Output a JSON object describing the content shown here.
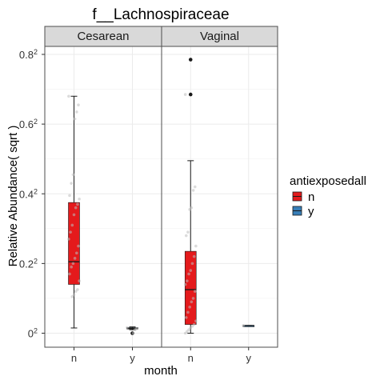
{
  "chart_data": {
    "type": "box",
    "title": "f__Lachnospiraceae",
    "xlabel": "month",
    "ylabel": "Relative Abundance( sqrt )",
    "ylim": [
      0,
      0.87
    ],
    "y_ticks": [
      0,
      0.2,
      0.4,
      0.6,
      0.8
    ],
    "y_tick_labels": [
      "0",
      "0.2",
      "0.4",
      "0.6",
      "0.8"
    ],
    "y_tick_superscript": "2",
    "categories": [
      "n",
      "y"
    ],
    "facets": [
      "Cesarean",
      "Vaginal"
    ],
    "legend": {
      "title": "antiexposedall",
      "position": "right",
      "entries": [
        {
          "label": "n",
          "color": "#e41a1c"
        },
        {
          "label": "y",
          "color": "#377eb8"
        }
      ]
    },
    "grid": true,
    "boxes": [
      {
        "facet": "Cesarean",
        "category": "n",
        "color": "#e41a1c",
        "min": 0.015,
        "q1": 0.14,
        "median": 0.205,
        "q3": 0.375,
        "max": 0.68,
        "outliers": [],
        "jitter": [
          0.68,
          0.655,
          0.635,
          0.615,
          0.455,
          0.43,
          0.395,
          0.385,
          0.37,
          0.36,
          0.34,
          0.31,
          0.29,
          0.27,
          0.25,
          0.23,
          0.215,
          0.2,
          0.19,
          0.17,
          0.15,
          0.125,
          0.12,
          0.11,
          0.105
        ]
      },
      {
        "facet": "Cesarean",
        "category": "y",
        "color": "#377eb8",
        "min": 0.01,
        "q1": 0.012,
        "median": 0.014,
        "q3": 0.016,
        "max": 0.018,
        "outliers": [
          0.0
        ],
        "jitter": [
          0.016,
          0.013,
          0.01,
          0.0
        ]
      },
      {
        "facet": "Vaginal",
        "category": "n",
        "color": "#e41a1c",
        "min": 0.0,
        "q1": 0.025,
        "median": 0.125,
        "q3": 0.235,
        "max": 0.495,
        "outliers": [
          0.785,
          0.685
        ],
        "jitter": [
          0.685,
          0.42,
          0.41,
          0.36,
          0.355,
          0.29,
          0.28,
          0.25,
          0.22,
          0.2,
          0.18,
          0.17,
          0.15,
          0.14,
          0.12,
          0.1,
          0.09,
          0.075,
          0.06,
          0.045,
          0.035,
          0.025,
          0.02,
          0.015,
          0.01,
          0.005,
          0.0
        ]
      },
      {
        "facet": "Vaginal",
        "category": "y",
        "color": "#377eb8",
        "min": 0.022,
        "q1": 0.022,
        "median": 0.022,
        "q3": 0.022,
        "max": 0.022,
        "outliers": [],
        "jitter": [
          0.022
        ]
      }
    ]
  }
}
